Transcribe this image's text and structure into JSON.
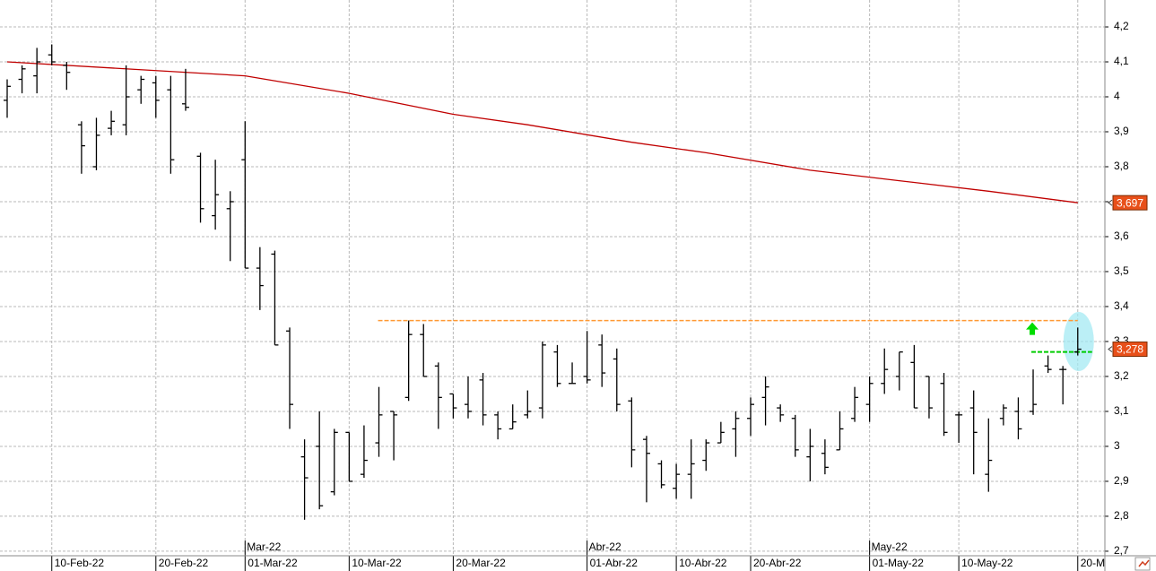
{
  "chart_data": {
    "type": "ohlc",
    "color": "#000000",
    "categories": [
      null,
      null,
      null,
      "10-Feb-22",
      null,
      null,
      null,
      null,
      null,
      null,
      "20-Feb-22",
      null,
      null,
      null,
      null,
      null,
      "01-Mar-22",
      null,
      null,
      null,
      null,
      null,
      null,
      "10-Mar-22",
      null,
      null,
      null,
      null,
      null,
      null,
      "20-Mar-22",
      null,
      null,
      null,
      null,
      null,
      null,
      null,
      null,
      "01-Abr-22",
      null,
      null,
      null,
      null,
      null,
      "10-Abr-22",
      null,
      null,
      null,
      null,
      "20-Abr-22",
      null,
      null,
      null,
      null,
      null,
      null,
      null,
      "01-May-22",
      null,
      null,
      null,
      null,
      null,
      "10-May-22",
      null,
      null,
      null,
      null,
      null,
      null,
      null,
      "20-M"
    ],
    "month_labels": [
      null,
      null,
      null,
      null,
      null,
      null,
      null,
      null,
      null,
      null,
      null,
      null,
      null,
      null,
      null,
      null,
      "Mar-22",
      null,
      null,
      null,
      null,
      null,
      null,
      null,
      null,
      null,
      null,
      null,
      null,
      null,
      null,
      null,
      null,
      null,
      null,
      null,
      null,
      null,
      null,
      "Abr-22",
      null,
      null,
      null,
      null,
      null,
      null,
      null,
      null,
      null,
      null,
      null,
      null,
      null,
      null,
      null,
      null,
      null,
      null,
      "May-22",
      null,
      null,
      null,
      null,
      null,
      null,
      null,
      null,
      null,
      null,
      null,
      null,
      null,
      null
    ],
    "open": [
      3.99,
      4.05,
      4.06,
      4.12,
      4.09,
      3.92,
      3.8,
      3.91,
      3.92,
      4.02,
      4.04,
      4.02,
      3.98,
      3.83,
      3.66,
      3.68,
      3.82,
      3.51,
      3.55,
      3.33,
      2.97,
      3.0,
      2.87,
      3.04,
      2.92,
      3.01,
      3.1,
      3.14,
      3.32,
      3.23,
      3.15,
      3.12,
      3.19,
      3.09,
      3.05,
      3.09,
      3.11,
      3.27,
      3.18,
      3.2,
      3.29,
      3.25,
      3.13,
      3.02,
      2.95,
      2.88,
      2.92,
      2.96,
      3.01,
      3.05,
      3.08,
      3.14,
      3.11,
      3.08,
      2.97,
      2.98,
      2.99,
      3.08,
      3.12,
      3.18,
      3.2,
      3.24,
      3.2,
      3.18,
      3.09,
      3.11,
      2.92,
      3.08,
      3.1,
      3.1,
      3.23,
      3.22,
      3.27
    ],
    "high": [
      4.05,
      4.09,
      4.14,
      4.15,
      4.1,
      3.93,
      3.94,
      3.96,
      4.09,
      4.06,
      4.06,
      4.06,
      4.08,
      3.84,
      3.82,
      3.73,
      3.93,
      3.57,
      3.56,
      3.34,
      3.02,
      3.1,
      3.05,
      3.04,
      3.06,
      3.17,
      3.1,
      3.36,
      3.35,
      3.24,
      3.15,
      3.2,
      3.21,
      3.1,
      3.12,
      3.16,
      3.3,
      3.29,
      3.24,
      3.33,
      3.32,
      3.28,
      3.14,
      3.03,
      2.96,
      2.95,
      3.02,
      3.02,
      3.07,
      3.1,
      3.14,
      3.2,
      3.12,
      3.09,
      3.05,
      3.02,
      3.1,
      3.17,
      3.2,
      3.28,
      3.27,
      3.29,
      3.2,
      3.21,
      3.1,
      3.16,
      3.08,
      3.12,
      3.14,
      3.22,
      3.26,
      3.23,
      3.34
    ],
    "low": [
      3.94,
      4.01,
      4.01,
      4.09,
      4.02,
      3.78,
      3.79,
      3.89,
      3.89,
      3.98,
      3.94,
      3.78,
      3.96,
      3.64,
      3.62,
      3.53,
      3.51,
      3.39,
      3.29,
      3.05,
      2.79,
      2.82,
      2.86,
      2.9,
      2.91,
      2.97,
      2.96,
      3.13,
      3.2,
      3.05,
      3.08,
      3.08,
      3.06,
      3.02,
      3.05,
      3.08,
      3.08,
      3.17,
      3.18,
      3.18,
      3.17,
      3.1,
      2.94,
      2.84,
      2.88,
      2.85,
      2.85,
      2.93,
      3.01,
      2.97,
      3.03,
      3.06,
      3.07,
      2.97,
      2.9,
      2.92,
      2.99,
      3.07,
      3.07,
      3.15,
      3.16,
      3.11,
      3.08,
      3.03,
      3.01,
      2.92,
      2.87,
      3.06,
      3.02,
      3.09,
      3.21,
      3.12,
      3.26
    ],
    "close": [
      4.03,
      4.08,
      4.1,
      4.1,
      4.07,
      3.86,
      3.89,
      3.93,
      4.0,
      4.05,
      3.99,
      3.82,
      3.97,
      3.68,
      3.72,
      3.7,
      3.51,
      3.46,
      3.29,
      3.12,
      2.91,
      2.83,
      3.04,
      2.9,
      2.96,
      3.09,
      3.09,
      3.32,
      3.2,
      3.14,
      3.11,
      3.1,
      3.09,
      3.05,
      3.07,
      3.1,
      3.29,
      3.18,
      3.18,
      3.19,
      3.21,
      3.12,
      2.99,
      2.98,
      2.89,
      2.92,
      2.95,
      3.01,
      3.04,
      3.08,
      3.12,
      3.17,
      3.09,
      2.99,
      3.0,
      2.94,
      3.05,
      3.14,
      3.18,
      3.22,
      3.27,
      3.11,
      3.11,
      3.04,
      3.09,
      3.04,
      2.96,
      3.11,
      3.05,
      3.12,
      3.22,
      3.22,
      3.278
    ],
    "close_label": "3,278",
    "close_label_color": "#e8501a",
    "ma": {
      "color": "#c00000",
      "index": [
        0,
        16,
        23,
        30,
        35,
        42,
        47,
        54,
        60,
        66,
        72
      ],
      "values": [
        4.1,
        4.06,
        4.01,
        3.95,
        3.92,
        3.87,
        3.84,
        3.79,
        3.76,
        3.73,
        3.697
      ],
      "end_label": "3,697"
    },
    "resistance": {
      "value": 3.36,
      "from": 25,
      "color": "#ff9933"
    },
    "trigger": {
      "value": 3.27,
      "from": 69,
      "color": "#00cc00"
    },
    "ylim": [
      2.687,
      4.277
    ],
    "yticks": [
      {
        "value": 2.7,
        "label": "2,7"
      },
      {
        "value": 2.8,
        "label": "2,8"
      },
      {
        "value": 2.9,
        "label": "2,9"
      },
      3,
      {
        "value": 3.1,
        "label": "3,1"
      },
      {
        "value": 3.2,
        "label": "3,2"
      },
      {
        "value": 3.3,
        "label": "3,3"
      },
      {
        "value": 3.4,
        "label": "3,4"
      },
      {
        "value": 3.5,
        "label": "3,5"
      },
      {
        "value": 3.6,
        "label": "3,6"
      },
      {
        "value": 3.7,
        "label": "3,7"
      },
      {
        "value": 3.8,
        "label": "3,8"
      },
      {
        "value": 3.9,
        "label": "3,9"
      },
      4,
      {
        "value": 4.1,
        "label": "4,1"
      },
      {
        "value": 4.2,
        "label": "4,2"
      }
    ],
    "grid": true
  }
}
